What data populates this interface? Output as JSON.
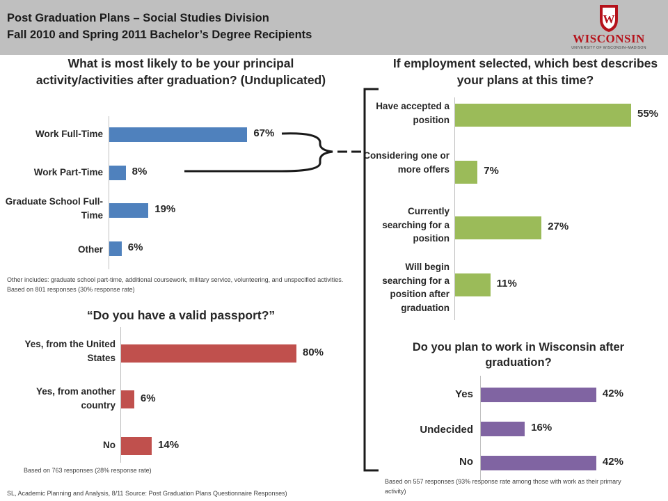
{
  "header": {
    "title_line1": "Post Graduation Plans – Social Studies Division",
    "title_line2": "Fall 2010 and Spring 2011 Bachelor’s Degree Recipients",
    "logo_word": "WISCONSIN",
    "logo_sub": "UNIVERSITY OF WISCONSIN–MADISON",
    "logo_crest": "W"
  },
  "colors": {
    "blue": "#4f81bd",
    "green": "#9bbb59",
    "red": "#c0504d",
    "purple": "#8064a2",
    "header_band": "#bfbfbf",
    "brand_red": "#b5121b"
  },
  "chart_data": [
    {
      "type": "bar",
      "orientation": "horizontal",
      "title": "What is most likely to be your principal activity/activities after graduation? (Unduplicated)",
      "categories": [
        "Work Full-Time",
        "Work Part-Time",
        "Graduate School Full-Time",
        "Other"
      ],
      "values": [
        67,
        8,
        19,
        6
      ],
      "labels": [
        "67%",
        "8%",
        "19%",
        "6%"
      ],
      "unit": "%",
      "xlim": [
        0,
        100
      ],
      "note": "Other includes: graduate school part-time, additional coursework, military service, volunteering, and unspecified activities. Based on 801 responses (30% response rate)"
    },
    {
      "type": "bar",
      "orientation": "horizontal",
      "title": "If employment selected, which best describes your plans at this time?",
      "categories": [
        "Have accepted a position",
        "Considering one or more offers",
        "Currently searching for a position",
        "Will begin searching for a position after graduation"
      ],
      "values": [
        55,
        7,
        27,
        11
      ],
      "labels": [
        "55%",
        "7%",
        "27%",
        "11%"
      ],
      "unit": "%",
      "xlim": [
        0,
        60
      ]
    },
    {
      "type": "bar",
      "orientation": "horizontal",
      "title": "“Do you have a valid passport?”",
      "categories": [
        "Yes, from the United States",
        "Yes, from another country",
        "No"
      ],
      "values": [
        80,
        6,
        14
      ],
      "labels": [
        "80%",
        "6%",
        "14%"
      ],
      "unit": "%",
      "xlim": [
        0,
        100
      ],
      "note": "Based on 763 responses (28% response rate)"
    },
    {
      "type": "bar",
      "orientation": "horizontal",
      "title": "Do you plan to work in Wisconsin after graduation?",
      "categories": [
        "Yes",
        "Undecided",
        "No"
      ],
      "values": [
        42,
        16,
        42
      ],
      "labels": [
        "42%",
        "16%",
        "42%"
      ],
      "unit": "%",
      "xlim": [
        0,
        50
      ],
      "note": "Based on 557 responses (93% response rate among those with work as their primary activity)"
    }
  ],
  "footer": {
    "source": "SL, Academic Planning and Analysis, 8/11 Source: Post Graduation Plans Questionnaire Responses)"
  }
}
